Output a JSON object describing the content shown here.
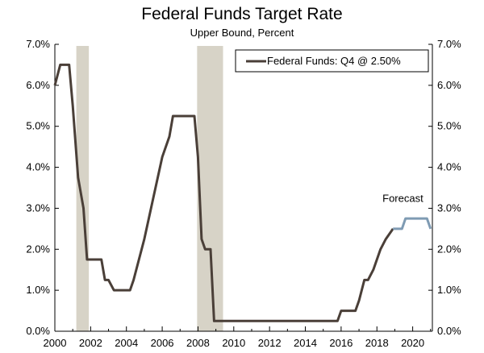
{
  "chart_data": {
    "type": "line",
    "title": "Federal Funds Target Rate",
    "subtitle": "Upper Bound, Percent",
    "xlim": [
      2000,
      2021.1
    ],
    "ylim": [
      0,
      7
    ],
    "x_ticks": [
      2000,
      2002,
      2004,
      2006,
      2008,
      2010,
      2012,
      2014,
      2016,
      2018,
      2020
    ],
    "y_tick_labels": [
      "0.0%",
      "1.0%",
      "2.0%",
      "3.0%",
      "4.0%",
      "5.0%",
      "6.0%",
      "7.0%"
    ],
    "y_ticks": [
      0,
      1,
      2,
      3,
      4,
      5,
      6,
      7
    ],
    "grid": false,
    "legend_position": "top-right",
    "colors": {
      "actual": "#4a3f38",
      "forecast": "#7f9bb3",
      "recession": "#d7d3c7"
    },
    "recessions": [
      {
        "start": 2001.2,
        "end": 2001.9
      },
      {
        "start": 2007.95,
        "end": 2009.4
      }
    ],
    "series": [
      {
        "name": "Federal Funds: Q4 @ 2.50%",
        "x": [
          2000.0,
          2000.3,
          2000.5,
          2000.8,
          2001.0,
          2001.3,
          2001.6,
          2001.8,
          2002.0,
          2002.3,
          2002.6,
          2002.8,
          2003.0,
          2003.3,
          2003.6,
          2004.2,
          2004.4,
          2005.0,
          2005.5,
          2006.0,
          2006.4,
          2006.6,
          2007.0,
          2007.4,
          2007.8,
          2008.0,
          2008.2,
          2008.4,
          2008.7,
          2008.9,
          2015.8,
          2016.0,
          2016.8,
          2017.0,
          2017.3,
          2017.5,
          2017.8,
          2018.2,
          2018.5,
          2018.9
        ],
        "y": [
          6.0,
          6.5,
          6.5,
          6.5,
          5.5,
          3.75,
          3.0,
          1.75,
          1.75,
          1.75,
          1.75,
          1.25,
          1.25,
          1.0,
          1.0,
          1.0,
          1.25,
          2.25,
          3.25,
          4.25,
          4.75,
          5.25,
          5.25,
          5.25,
          5.25,
          4.25,
          2.25,
          2.0,
          2.0,
          0.25,
          0.25,
          0.5,
          0.5,
          0.75,
          1.25,
          1.25,
          1.5,
          2.0,
          2.25,
          2.5
        ]
      },
      {
        "name": "Forecast",
        "x": [
          2018.9,
          2019.4,
          2019.6,
          2020.0,
          2020.5,
          2020.8,
          2021.0
        ],
        "y": [
          2.5,
          2.5,
          2.75,
          2.75,
          2.75,
          2.75,
          2.5
        ]
      }
    ],
    "legend_label": "Federal Funds: Q4 @ 2.50%",
    "annotation": {
      "text": "Forecast",
      "x": 2019.0,
      "y": 3.0
    }
  }
}
